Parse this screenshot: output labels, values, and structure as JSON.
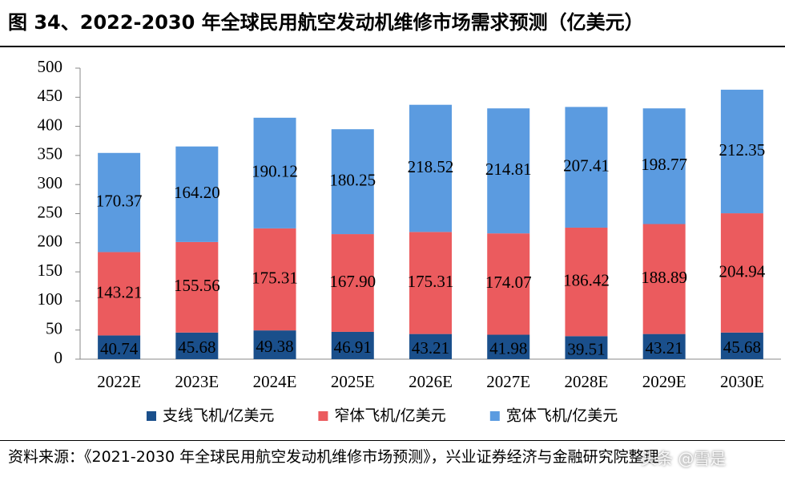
{
  "chart_data": {
    "type": "stacked-bar",
    "title": "图 34、2022-2030 年全球民用航空发动机维修市场需求预测（亿美元）",
    "categories": [
      "2022E",
      "2023E",
      "2024E",
      "2025E",
      "2026E",
      "2027E",
      "2028E",
      "2029E",
      "2030E"
    ],
    "series": [
      {
        "name": "支线飞机/亿美元",
        "color": "#1a4f8b",
        "values": [
          40.74,
          45.68,
          49.38,
          46.91,
          43.21,
          41.98,
          39.51,
          43.21,
          45.68
        ],
        "value_labels": [
          "40.74",
          "45.68",
          "49.38",
          "46.91",
          "43.21",
          "41.98",
          "39.51",
          "43.21",
          "45.68"
        ]
      },
      {
        "name": "窄体飞机/亿美元",
        "color": "#eb5b5e",
        "values": [
          143.21,
          155.56,
          175.31,
          167.9,
          175.31,
          174.07,
          186.42,
          188.89,
          204.94
        ],
        "value_labels": [
          "143.21",
          "155.56",
          "175.31",
          "167.90",
          "175.31",
          "174.07",
          "186.42",
          "188.89",
          "204.94"
        ]
      },
      {
        "name": "宽体飞机/亿美元",
        "color": "#5b9be0",
        "values": [
          170.37,
          164.2,
          190.12,
          180.25,
          218.52,
          214.81,
          207.41,
          198.77,
          212.35
        ],
        "value_labels": [
          "170.37",
          "164.20",
          "190.12",
          "180.25",
          "218.52",
          "214.81",
          "207.41",
          "198.77",
          "212.35"
        ]
      }
    ],
    "ylim": [
      0,
      500
    ],
    "yticks": [
      0,
      50,
      100,
      150,
      200,
      250,
      300,
      350,
      400,
      450,
      500
    ],
    "grid": false,
    "legend": "bottom",
    "source": "资料来源：《2021-2030 年全球民用航空发动机维修市场预测》，兴业证券经济与金融研究院整理",
    "watermark": "头条 @雪是"
  }
}
